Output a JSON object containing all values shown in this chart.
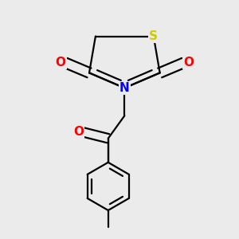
{
  "background_color": "#ebebeb",
  "bond_color": "#000000",
  "atom_colors": {
    "S": "#cccc00",
    "N": "#0000ff",
    "O": "#ff0000",
    "C": "#000000"
  },
  "line_width": 1.6,
  "font_size_atoms": 11
}
